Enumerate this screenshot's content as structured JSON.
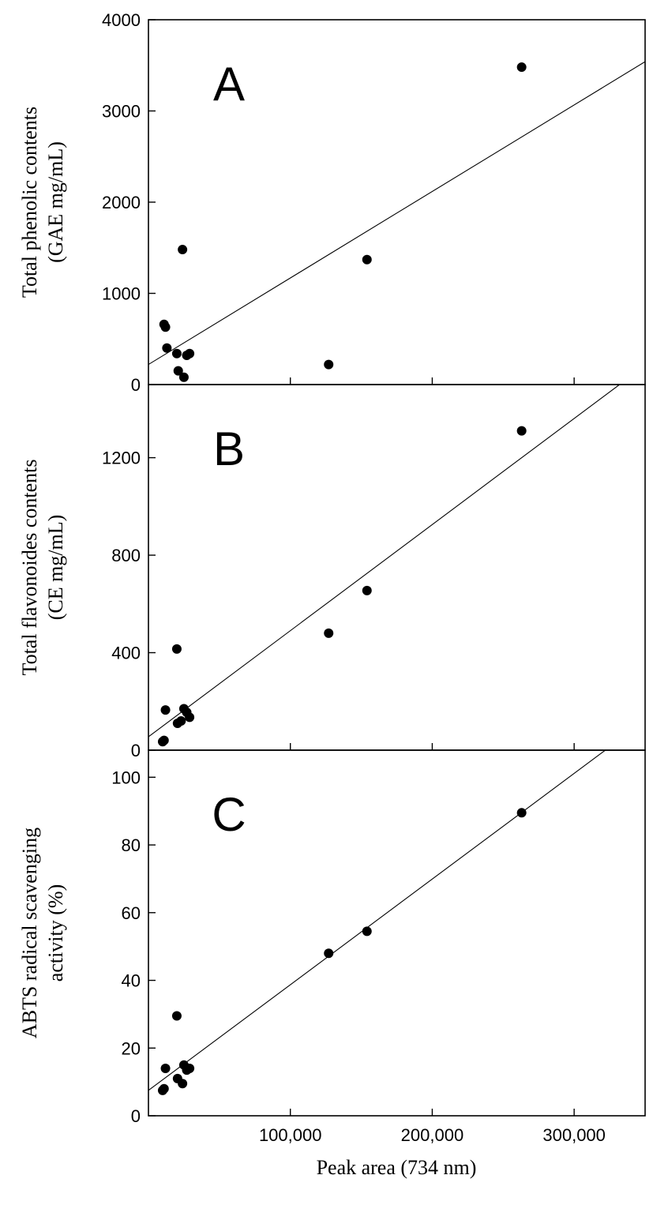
{
  "chart_data": [
    {
      "type": "scatter",
      "panel_label": "A",
      "ylabel_lines": [
        "Total phenolic contents",
        "(GAE mg/mL)"
      ],
      "xlim": [
        0,
        350000
      ],
      "ylim": [
        0,
        4000
      ],
      "yticks": [
        0,
        1000,
        2000,
        3000,
        4000
      ],
      "ytick_labels": [
        "0",
        "1000",
        "2000",
        "3000",
        "4000"
      ],
      "points": [
        {
          "x": 11000,
          "y": 660
        },
        {
          "x": 12000,
          "y": 630
        },
        {
          "x": 13000,
          "y": 400
        },
        {
          "x": 20000,
          "y": 340
        },
        {
          "x": 21000,
          "y": 150
        },
        {
          "x": 24000,
          "y": 1480
        },
        {
          "x": 25000,
          "y": 80
        },
        {
          "x": 27000,
          "y": 320
        },
        {
          "x": 29000,
          "y": 340
        },
        {
          "x": 127000,
          "y": 220
        },
        {
          "x": 154000,
          "y": 1370
        },
        {
          "x": 263000,
          "y": 3480
        }
      ],
      "fit_line": {
        "x": [
          0,
          350000
        ],
        "y": [
          220,
          3540
        ]
      },
      "grid": false
    },
    {
      "type": "scatter",
      "panel_label": "B",
      "ylabel_lines": [
        "Total flavonoides contents",
        "(CE mg/mL)"
      ],
      "xlim": [
        0,
        350000
      ],
      "ylim": [
        0,
        1500
      ],
      "yticks": [
        0,
        400,
        800,
        1200
      ],
      "ytick_labels": [
        "0",
        "400",
        "800",
        "1200"
      ],
      "points": [
        {
          "x": 10000,
          "y": 35
        },
        {
          "x": 11000,
          "y": 40
        },
        {
          "x": 12000,
          "y": 165
        },
        {
          "x": 20000,
          "y": 415
        },
        {
          "x": 20500,
          "y": 110
        },
        {
          "x": 23000,
          "y": 120
        },
        {
          "x": 25000,
          "y": 170
        },
        {
          "x": 27000,
          "y": 155
        },
        {
          "x": 29000,
          "y": 135
        },
        {
          "x": 127000,
          "y": 480
        },
        {
          "x": 154000,
          "y": 655
        },
        {
          "x": 263000,
          "y": 1310
        }
      ],
      "fit_line": {
        "x": [
          0,
          332000
        ],
        "y": [
          55,
          1500
        ]
      },
      "grid": false
    },
    {
      "type": "scatter",
      "panel_label": "C",
      "ylabel_lines": [
        "ABTS radical scavenging",
        "activity (%)"
      ],
      "xlim": [
        0,
        350000
      ],
      "ylim": [
        0,
        108
      ],
      "yticks": [
        0,
        20,
        40,
        60,
        80,
        100
      ],
      "ytick_labels": [
        "0",
        "20",
        "40",
        "60",
        "80",
        "100"
      ],
      "xticks": [
        100000,
        200000,
        300000
      ],
      "xtick_labels": [
        "100,000",
        "200,000",
        "300,000"
      ],
      "xlabel": "Peak area (734 nm)",
      "points": [
        {
          "x": 10000,
          "y": 7.5
        },
        {
          "x": 11000,
          "y": 8
        },
        {
          "x": 12000,
          "y": 14
        },
        {
          "x": 20000,
          "y": 29.5
        },
        {
          "x": 20500,
          "y": 11
        },
        {
          "x": 24000,
          "y": 9.5
        },
        {
          "x": 25000,
          "y": 15
        },
        {
          "x": 27000,
          "y": 13.5
        },
        {
          "x": 29000,
          "y": 14
        },
        {
          "x": 127000,
          "y": 48
        },
        {
          "x": 154000,
          "y": 54.5
        },
        {
          "x": 263000,
          "y": 89.5
        }
      ],
      "fit_line": {
        "x": [
          0,
          322000
        ],
        "y": [
          7.5,
          108
        ]
      },
      "grid": false
    }
  ]
}
